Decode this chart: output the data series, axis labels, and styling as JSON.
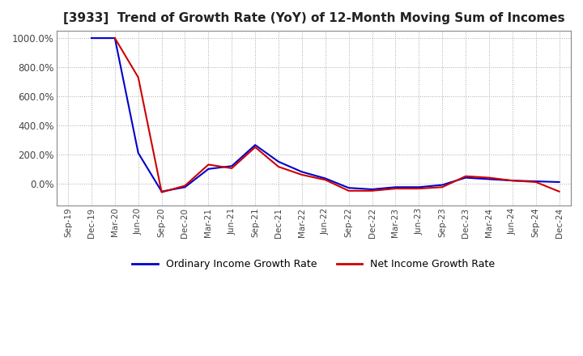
{
  "title": "[3933]  Trend of Growth Rate (YoY) of 12-Month Moving Sum of Incomes",
  "title_fontsize": 11,
  "background_color": "#ffffff",
  "plot_bg_color": "#ffffff",
  "grid_color": "#aaaaaa",
  "ordinary_color": "#0000cc",
  "net_color": "#cc0000",
  "legend_ordinary": "Ordinary Income Growth Rate",
  "legend_net": "Net Income Growth Rate",
  "ylim": [
    -150,
    1050
  ],
  "ytick_values": [
    0,
    200,
    400,
    600,
    800,
    1000
  ],
  "x_labels": [
    "Sep-19",
    "Dec-19",
    "Mar-20",
    "Jun-20",
    "Sep-20",
    "Dec-20",
    "Mar-21",
    "Jun-21",
    "Sep-21",
    "Dec-21",
    "Mar-22",
    "Jun-22",
    "Sep-22",
    "Dec-22",
    "Mar-23",
    "Jun-23",
    "Sep-23",
    "Dec-23",
    "Mar-24",
    "Jun-24",
    "Sep-24",
    "Dec-24"
  ],
  "ordinary_data": [
    [
      "Dec-19",
      1000
    ],
    [
      "Mar-20",
      1000
    ],
    [
      "Jun-20",
      210
    ],
    [
      "Sep-20",
      -55
    ],
    [
      "Dec-20",
      -25
    ],
    [
      "Mar-21",
      100
    ],
    [
      "Jun-21",
      120
    ],
    [
      "Sep-21",
      265
    ],
    [
      "Dec-21",
      150
    ],
    [
      "Mar-22",
      80
    ],
    [
      "Jun-22",
      35
    ],
    [
      "Sep-22",
      -30
    ],
    [
      "Dec-22",
      -40
    ],
    [
      "Mar-23",
      -25
    ],
    [
      "Jun-23",
      -25
    ],
    [
      "Sep-23",
      -10
    ],
    [
      "Dec-23",
      40
    ],
    [
      "Mar-24",
      30
    ],
    [
      "Jun-24",
      20
    ],
    [
      "Sep-24",
      15
    ],
    [
      "Dec-24",
      10
    ]
  ],
  "net_data": [
    [
      "Mar-20",
      1000
    ],
    [
      "Jun-20",
      730
    ],
    [
      "Sep-20",
      -60
    ],
    [
      "Dec-20",
      -15
    ],
    [
      "Mar-21",
      130
    ],
    [
      "Jun-21",
      105
    ],
    [
      "Sep-21",
      250
    ],
    [
      "Dec-21",
      115
    ],
    [
      "Mar-22",
      60
    ],
    [
      "Jun-22",
      25
    ],
    [
      "Sep-22",
      -50
    ],
    [
      "Dec-22",
      -50
    ],
    [
      "Mar-23",
      -35
    ],
    [
      "Jun-23",
      -35
    ],
    [
      "Sep-23",
      -25
    ],
    [
      "Dec-23",
      50
    ],
    [
      "Mar-24",
      40
    ],
    [
      "Jun-24",
      20
    ],
    [
      "Sep-24",
      10
    ],
    [
      "Dec-24",
      -55
    ]
  ]
}
